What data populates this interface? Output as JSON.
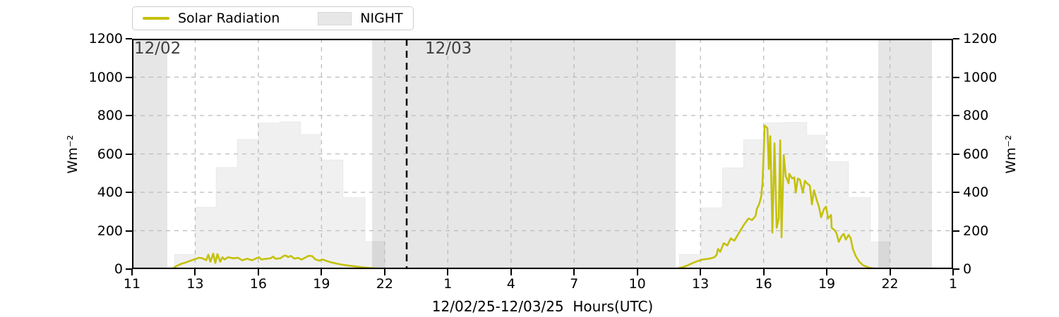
{
  "legend": {
    "series_label": "Solar Radiation",
    "night_label": "NIGHT"
  },
  "annotations": {
    "day1_label": "12/02",
    "day2_label": "12/03"
  },
  "axes": {
    "x_label": "12/02/25-12/03/25  Hours(UTC)",
    "x_tick_labels": [
      "11",
      "13",
      "16",
      "19",
      "22",
      "1",
      "4",
      "7",
      "10",
      "13",
      "16",
      "19",
      "22",
      "1"
    ],
    "y_ticks": [
      0,
      200,
      400,
      600,
      800,
      1000,
      1200
    ],
    "y_max": 1200,
    "y_label_left": "Wm⁻²",
    "y_label_right": "Wm⁻²"
  },
  "chart_data": {
    "type": "line",
    "title": "",
    "xlabel": "12/02/25-12/03/25  Hours(UTC)",
    "ylabel": "Wm⁻²",
    "ylim": [
      0,
      1200
    ],
    "x_unit": "axis_fraction_11utc_1202_to_01utc_1204",
    "grid": "dashed",
    "legend_position": "top-left",
    "colors": {
      "line": "#c4c10d",
      "night_fill": "#e6e6e6",
      "step_fill": "rgba(0,0,0,0.06)",
      "grid": "#bcbcbc",
      "divider": "#000000",
      "date_text": "#3f3f3f"
    },
    "night_regions": [
      [
        0.0,
        0.043
      ],
      [
        0.2924,
        0.6621
      ],
      [
        0.9088,
        0.9742
      ]
    ],
    "day_divider_frac": 0.3345,
    "background_steps": {
      "day1": [
        [
          0.0516,
          0.0774,
          77
        ],
        [
          0.0774,
          0.1023,
          323
        ],
        [
          0.1023,
          0.1281,
          530
        ],
        [
          0.1281,
          0.1539,
          676
        ],
        [
          0.1539,
          0.1797,
          762
        ],
        [
          0.1797,
          0.2055,
          768
        ],
        [
          0.2055,
          0.2296,
          702
        ],
        [
          0.2296,
          0.2571,
          569
        ],
        [
          0.2571,
          0.2838,
          374
        ],
        [
          0.2838,
          0.3078,
          144
        ]
      ],
      "day2": [
        [
          0.6664,
          0.6931,
          77
        ],
        [
          0.6931,
          0.7189,
          320
        ],
        [
          0.7189,
          0.7446,
          528
        ],
        [
          0.7446,
          0.7704,
          675
        ],
        [
          0.7704,
          0.7962,
          763
        ],
        [
          0.7962,
          0.822,
          765
        ],
        [
          0.822,
          0.8444,
          698
        ],
        [
          0.8444,
          0.8727,
          561
        ],
        [
          0.8727,
          0.8994,
          374
        ],
        [
          0.8994,
          0.9226,
          142
        ]
      ]
    },
    "series": [
      {
        "name": "Solar Radiation",
        "color": "#c4c10d",
        "points": [
          [
            0.0,
            0
          ],
          [
            0.0482,
            0
          ],
          [
            0.0499,
            3
          ],
          [
            0.0542,
            16
          ],
          [
            0.0602,
            28
          ],
          [
            0.0653,
            34
          ],
          [
            0.0714,
            44
          ],
          [
            0.0774,
            53
          ],
          [
            0.0817,
            59
          ],
          [
            0.086,
            56
          ],
          [
            0.0903,
            46
          ],
          [
            0.0929,
            75
          ],
          [
            0.0954,
            38
          ],
          [
            0.0989,
            81
          ],
          [
            0.1015,
            32
          ],
          [
            0.104,
            78
          ],
          [
            0.1075,
            38
          ],
          [
            0.1101,
            62
          ],
          [
            0.1126,
            50
          ],
          [
            0.1169,
            62
          ],
          [
            0.123,
            56
          ],
          [
            0.129,
            59
          ],
          [
            0.1341,
            46
          ],
          [
            0.1402,
            54
          ],
          [
            0.1462,
            46
          ],
          [
            0.1513,
            56
          ],
          [
            0.1548,
            62
          ],
          [
            0.1574,
            50
          ],
          [
            0.1634,
            54
          ],
          [
            0.1685,
            56
          ],
          [
            0.172,
            65
          ],
          [
            0.1746,
            54
          ],
          [
            0.1806,
            56
          ],
          [
            0.1849,
            69
          ],
          [
            0.1874,
            71
          ],
          [
            0.19,
            62
          ],
          [
            0.1935,
            69
          ],
          [
            0.1978,
            54
          ],
          [
            0.2021,
            59
          ],
          [
            0.2064,
            50
          ],
          [
            0.2107,
            59
          ],
          [
            0.215,
            69
          ],
          [
            0.2193,
            68
          ],
          [
            0.2236,
            50
          ],
          [
            0.2279,
            44
          ],
          [
            0.2322,
            50
          ],
          [
            0.2373,
            42
          ],
          [
            0.2434,
            34
          ],
          [
            0.252,
            26
          ],
          [
            0.2605,
            20
          ],
          [
            0.2717,
            14
          ],
          [
            0.2838,
            8
          ],
          [
            0.2949,
            4
          ],
          [
            0.3096,
            1
          ],
          [
            0.3207,
            0
          ],
          [
            0.6604,
            0
          ],
          [
            0.663,
            2
          ],
          [
            0.669,
            8
          ],
          [
            0.6759,
            18
          ],
          [
            0.6819,
            30
          ],
          [
            0.6888,
            42
          ],
          [
            0.6948,
            50
          ],
          [
            0.7008,
            53
          ],
          [
            0.7051,
            56
          ],
          [
            0.7094,
            62
          ],
          [
            0.712,
            75
          ],
          [
            0.7137,
            105
          ],
          [
            0.7163,
            90
          ],
          [
            0.7206,
            135
          ],
          [
            0.7249,
            123
          ],
          [
            0.7292,
            160
          ],
          [
            0.7335,
            148
          ],
          [
            0.7395,
            190
          ],
          [
            0.7446,
            227
          ],
          [
            0.7507,
            264
          ],
          [
            0.755,
            255
          ],
          [
            0.7593,
            276
          ],
          [
            0.761,
            313
          ],
          [
            0.7636,
            337
          ],
          [
            0.7661,
            374
          ],
          [
            0.7678,
            447
          ],
          [
            0.7696,
            631
          ],
          [
            0.7704,
            747
          ],
          [
            0.7739,
            735
          ],
          [
            0.7756,
            521
          ],
          [
            0.7773,
            692
          ],
          [
            0.779,
            374
          ],
          [
            0.7799,
            190
          ],
          [
            0.7825,
            655
          ],
          [
            0.7851,
            215
          ],
          [
            0.7876,
            264
          ],
          [
            0.7894,
            671
          ],
          [
            0.7911,
            166
          ],
          [
            0.7937,
            594
          ],
          [
            0.7962,
            484
          ],
          [
            0.7997,
            447
          ],
          [
            0.8005,
            496
          ],
          [
            0.804,
            472
          ],
          [
            0.8066,
            478
          ],
          [
            0.8083,
            398
          ],
          [
            0.8109,
            472
          ],
          [
            0.8134,
            466
          ],
          [
            0.8169,
            398
          ],
          [
            0.8195,
            460
          ],
          [
            0.822,
            447
          ],
          [
            0.8255,
            435
          ],
          [
            0.828,
            337
          ],
          [
            0.8306,
            411
          ],
          [
            0.8341,
            356
          ],
          [
            0.8366,
            325
          ],
          [
            0.8392,
            270
          ],
          [
            0.8427,
            313
          ],
          [
            0.8452,
            325
          ],
          [
            0.8478,
            264
          ],
          [
            0.8513,
            282
          ],
          [
            0.8521,
            215
          ],
          [
            0.8556,
            203
          ],
          [
            0.8582,
            184
          ],
          [
            0.8607,
            142
          ],
          [
            0.8642,
            172
          ],
          [
            0.8668,
            184
          ],
          [
            0.8693,
            154
          ],
          [
            0.8728,
            178
          ],
          [
            0.8753,
            160
          ],
          [
            0.8779,
            105
          ],
          [
            0.8814,
            68
          ],
          [
            0.8857,
            38
          ],
          [
            0.8908,
            19
          ],
          [
            0.8994,
            5
          ],
          [
            0.9114,
            0
          ],
          [
            1.0,
            0
          ]
        ]
      }
    ]
  }
}
